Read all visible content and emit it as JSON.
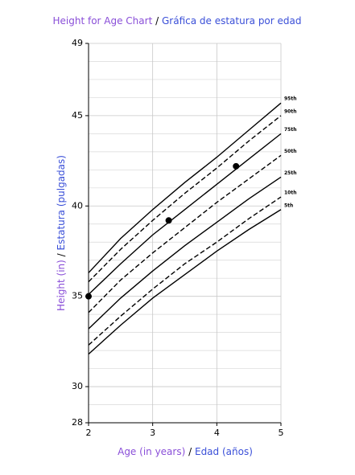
{
  "chart_data": {
    "type": "line",
    "title": {
      "en": "Height for Age Chart",
      "sep": "/",
      "es": "Gráfica de estatura por edad"
    },
    "x_label": {
      "en": "Age (in years)",
      "sep": "/",
      "es": "Edad (años)"
    },
    "y_label": {
      "en": "Height (in)",
      "sep": "/",
      "es": "Estatura (pulgadas)"
    },
    "x": [
      2,
      2.5,
      3,
      3.5,
      4,
      4.5,
      5
    ],
    "xlim": [
      2,
      5
    ],
    "xticks": [
      2,
      3,
      4,
      5
    ],
    "ylim": [
      28,
      49
    ],
    "yticks": [
      28,
      30,
      35,
      40,
      45,
      49
    ],
    "y_minor_ticks": [
      29,
      31,
      32,
      33,
      34,
      36,
      37,
      38,
      39,
      41,
      42,
      43,
      44,
      46,
      47,
      48
    ],
    "grid": true,
    "series": [
      {
        "name": "95th",
        "color": "#000000",
        "dashed": false,
        "values": [
          36.3,
          38.2,
          39.8,
          41.3,
          42.7,
          44.2,
          45.7
        ]
      },
      {
        "name": "90th",
        "color": "#000000",
        "dashed": true,
        "values": [
          35.8,
          37.6,
          39.2,
          40.7,
          42.1,
          43.6,
          45.0
        ]
      },
      {
        "name": "75th",
        "color": "#000000",
        "dashed": false,
        "values": [
          35.1,
          36.8,
          38.4,
          39.8,
          41.2,
          42.6,
          44.0
        ]
      },
      {
        "name": "50th",
        "color": "#000000",
        "dashed": true,
        "values": [
          34.1,
          35.9,
          37.4,
          38.8,
          40.2,
          41.5,
          42.8
        ]
      },
      {
        "name": "25th",
        "color": "#000000",
        "dashed": false,
        "values": [
          33.2,
          34.9,
          36.4,
          37.8,
          39.1,
          40.4,
          41.6
        ]
      },
      {
        "name": "10th",
        "color": "#000000",
        "dashed": true,
        "values": [
          32.3,
          33.9,
          35.4,
          36.8,
          38.0,
          39.3,
          40.5
        ]
      },
      {
        "name": "5th",
        "color": "#000000",
        "dashed": false,
        "values": [
          31.8,
          33.4,
          34.9,
          36.2,
          37.5,
          38.7,
          39.8
        ]
      }
    ],
    "points": {
      "color": "#000000",
      "x": [
        2,
        3.25,
        4.3
      ],
      "values": [
        35,
        39.2,
        42.2
      ]
    },
    "title_colors": {
      "en": "#8a4fd8",
      "es": "#3a4fd8"
    }
  }
}
